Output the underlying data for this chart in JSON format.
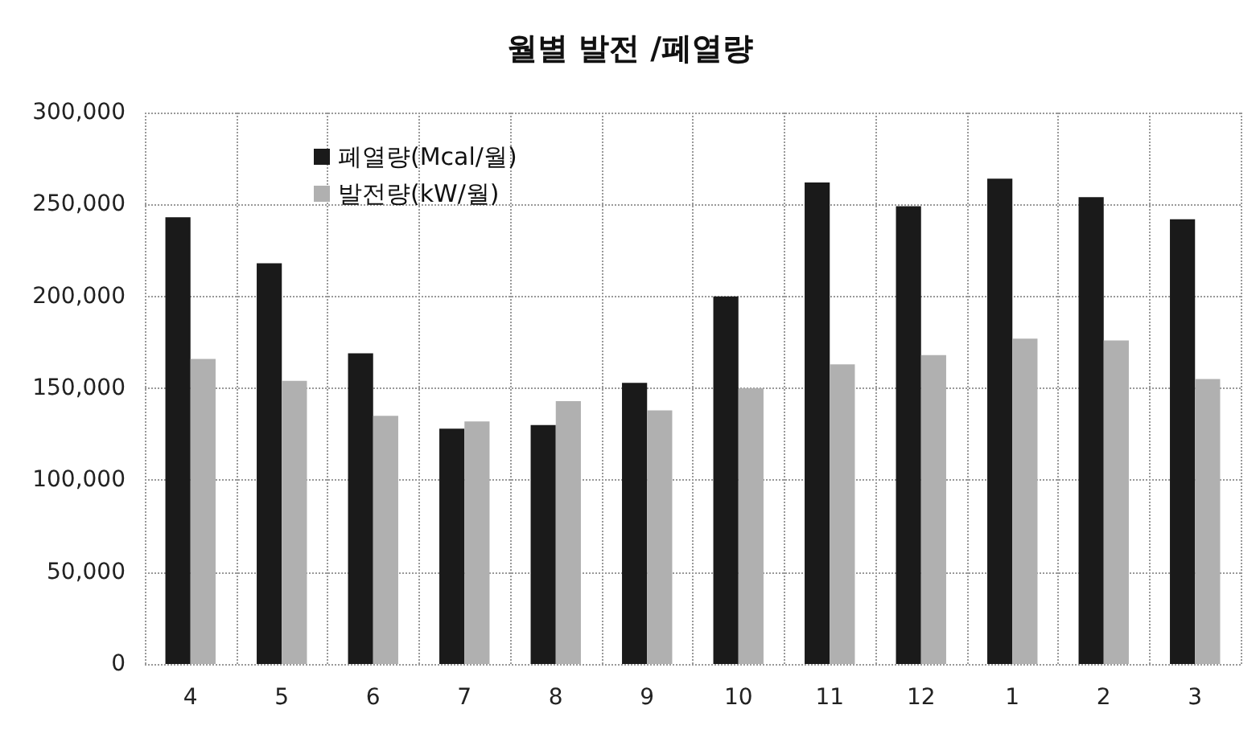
{
  "chart_data": {
    "type": "bar",
    "title": "월별 발전 /폐열량",
    "categories": [
      "4",
      "5",
      "6",
      "7",
      "8",
      "9",
      "10",
      "11",
      "12",
      "1",
      "2",
      "3"
    ],
    "series": [
      {
        "name": "폐열량(Mcal/월)",
        "color": "#1a1a1a",
        "values": [
          243000,
          218000,
          169000,
          128000,
          130000,
          153000,
          200000,
          262000,
          249000,
          264000,
          254000,
          242000
        ]
      },
      {
        "name": "발전량(kW/월)",
        "color": "#b0b0b0",
        "values": [
          166000,
          154000,
          135000,
          132000,
          143000,
          138000,
          150000,
          163000,
          168000,
          177000,
          176000,
          155000
        ]
      }
    ],
    "ylim": [
      0,
      300000
    ],
    "yticks": [
      0,
      {
        "value": 50000,
        "label": "50,000"
      },
      {
        "value": 100000,
        "label": "100,000"
      },
      {
        "value": 150000,
        "label": "150,000"
      },
      {
        "value": 200000,
        "label": "200,000"
      },
      {
        "value": 250000,
        "label": "250,000"
      },
      {
        "value": 300000,
        "label": "300,000"
      }
    ],
    "grid": true,
    "legend": "top left"
  }
}
